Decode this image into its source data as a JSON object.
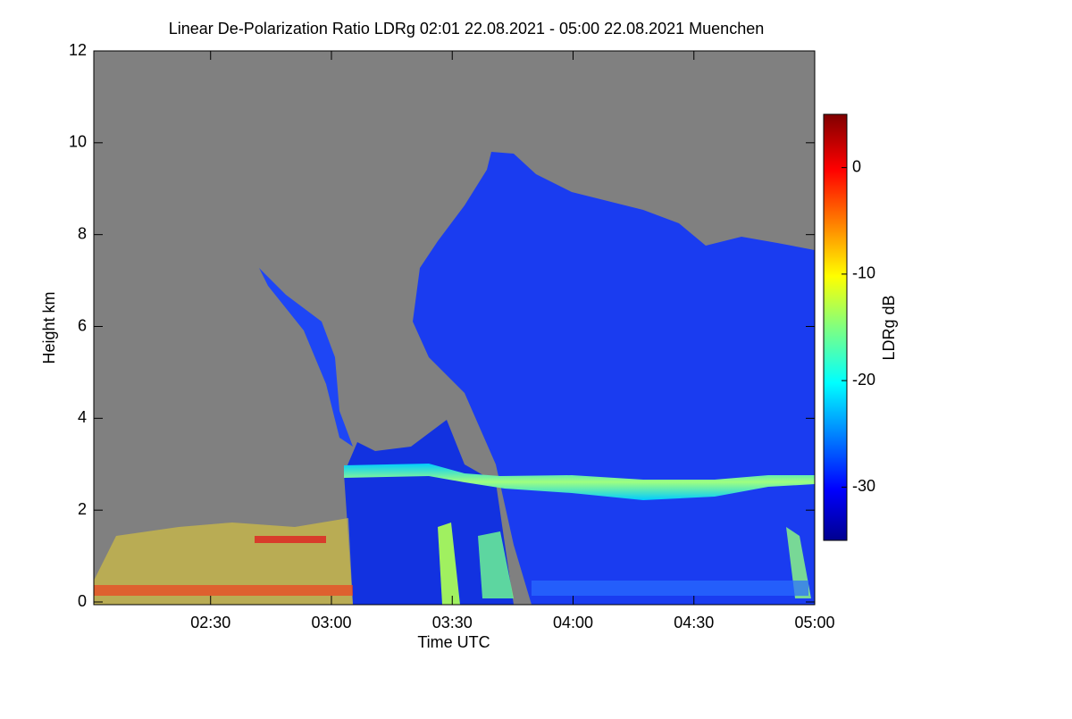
{
  "chart_data": {
    "type": "heatmap",
    "title": "Linear De-Polarization Ratio LDRg   02:01 22.08.2021 - 05:00 22.08.2021 Muenchen",
    "x_label": "Time UTC",
    "y_label": "Height km",
    "xlim": [
      2.0167,
      5.0
    ],
    "xticks": [
      {
        "value": 2.5,
        "label": "02:30"
      },
      {
        "value": 3.0,
        "label": "03:00"
      },
      {
        "value": 3.5,
        "label": "03:30"
      },
      {
        "value": 4.0,
        "label": "04:00"
      },
      {
        "value": 4.5,
        "label": "04:30"
      },
      {
        "value": 5.0,
        "label": "05:00"
      }
    ],
    "ylim": [
      0,
      12
    ],
    "yticks": [
      0,
      2,
      4,
      6,
      8,
      10,
      12
    ],
    "colorbar": {
      "label": "LDRg dB",
      "clim": [
        -35,
        5
      ],
      "ticks": [
        -30,
        -20,
        -10,
        0
      ],
      "colormap": "jet"
    },
    "background": "#808080"
  }
}
